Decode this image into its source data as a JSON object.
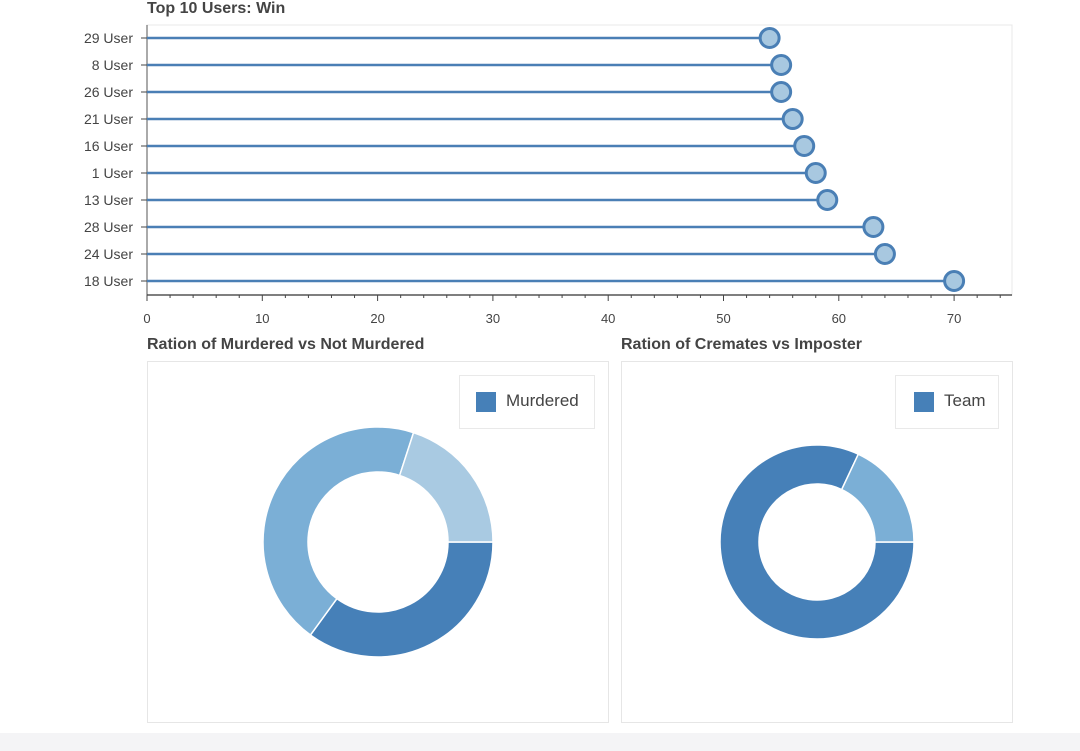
{
  "chart_data": [
    {
      "type": "lollipop",
      "title": "Top 10 Users: Win",
      "categories": [
        "29 User",
        "8 User",
        "26 User",
        "21 User",
        "16 User",
        "1 User",
        "13 User",
        "28 User",
        "24 User",
        "18 User"
      ],
      "values": [
        54,
        55,
        55,
        56,
        57,
        58,
        59,
        63,
        64,
        70
      ],
      "xticks": [
        0,
        10,
        20,
        30,
        40,
        50,
        60,
        70
      ],
      "xlim": [
        0,
        75
      ],
      "xlabel": "",
      "ylabel": "",
      "grid": false,
      "colors": {
        "line": "#4a7fb5",
        "marker_fill": "#a8c8e0",
        "marker_stroke": "#4a7fb5"
      }
    },
    {
      "type": "pie",
      "subtype": "donut",
      "title": "Ration of Murdered vs Not Murdered",
      "legend": [
        "Murdered"
      ],
      "legend_position": "top-right",
      "values": [
        35,
        45,
        20
      ],
      "colors": [
        "#4680b8",
        "#7bafd6",
        "#a9cae2"
      ]
    },
    {
      "type": "pie",
      "subtype": "donut",
      "title": "Ration of Cremates vs Imposter",
      "legend": [
        "Team"
      ],
      "legend_position": "top-right",
      "values": [
        82,
        18
      ],
      "colors": [
        "#4680b8",
        "#7bafd6"
      ]
    }
  ]
}
